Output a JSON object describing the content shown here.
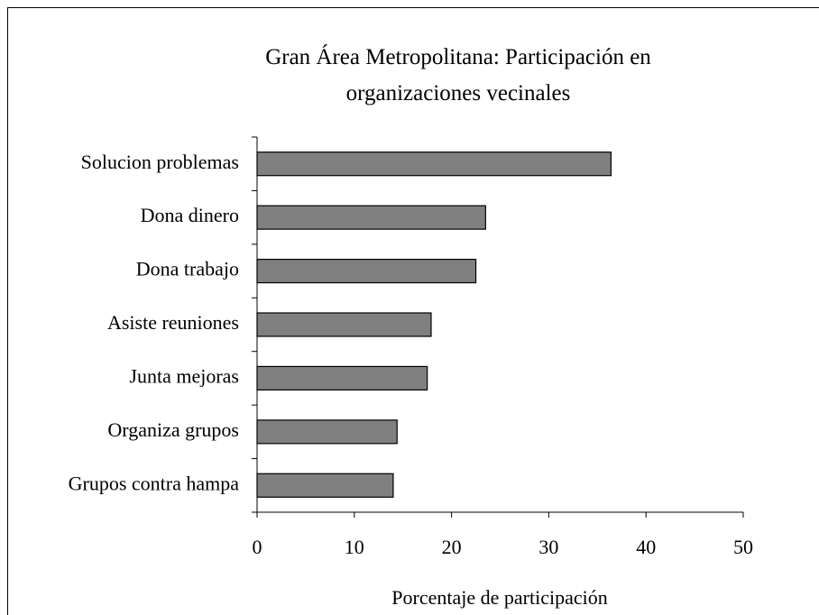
{
  "chart_data": {
    "type": "bar",
    "orientation": "horizontal",
    "title": "Gran Área Metropolitana: Participación en organizaciones vecinales",
    "xlabel": "Porcentaje de participación",
    "categories": [
      "Solucion problemas",
      "Dona dinero",
      "Dona trabajo",
      "Asiste reuniones",
      "Junta mejoras",
      "Organiza grupos",
      "Grupos contra hampa"
    ],
    "values": [
      36.4,
      23.5,
      22.5,
      17.9,
      17.5,
      14.4,
      14.0
    ],
    "color": "#808080",
    "xlim": [
      0,
      50
    ],
    "xticks": [
      0,
      10,
      20,
      30,
      40,
      50
    ],
    "grid": false
  }
}
